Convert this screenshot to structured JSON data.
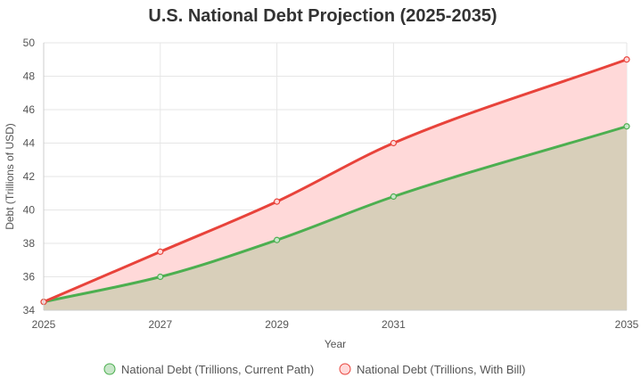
{
  "chart_data": {
    "type": "area",
    "title": "U.S. National Debt Projection (2025-2035)",
    "xlabel": "Year",
    "ylabel": "Debt (Trillions of USD)",
    "x": [
      2025,
      2027,
      2029,
      2031,
      2035
    ],
    "xlim": [
      2025,
      2035
    ],
    "ylim": [
      34,
      50
    ],
    "yticks": [
      34,
      36,
      38,
      40,
      42,
      44,
      46,
      48,
      50
    ],
    "grid": true,
    "legend_position": "bottom",
    "series": [
      {
        "name": "National Debt (Trillions, Current Path)",
        "values": [
          34.5,
          36.0,
          38.2,
          40.8,
          45.0
        ],
        "line_color": "#4caf50",
        "fill_color": "#c8e6c9"
      },
      {
        "name": "National Debt (Trillions, With Bill)",
        "values": [
          34.5,
          37.5,
          40.5,
          44.0,
          49.0
        ],
        "line_color": "#e8433b",
        "fill_color": "#ffd9d9"
      }
    ],
    "overlap_fill_color": "#d8cfba"
  }
}
